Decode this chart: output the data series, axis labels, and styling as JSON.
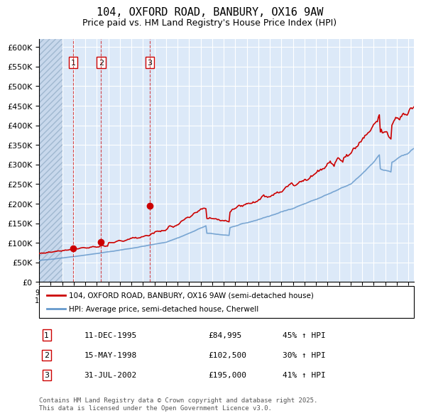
{
  "title": "104, OXFORD ROAD, BANBURY, OX16 9AW",
  "subtitle": "Price paid vs. HM Land Registry's House Price Index (HPI)",
  "red_line_label": "104, OXFORD ROAD, BANBURY, OX16 9AW (semi-detached house)",
  "blue_line_label": "HPI: Average price, semi-detached house, Cherwell",
  "ylabel_ticks": [
    "£0",
    "£50K",
    "£100K",
    "£150K",
    "£200K",
    "£250K",
    "£300K",
    "£350K",
    "£400K",
    "£450K",
    "£500K",
    "£550K",
    "£600K"
  ],
  "ytick_values": [
    0,
    50000,
    100000,
    150000,
    200000,
    250000,
    300000,
    350000,
    400000,
    450000,
    500000,
    550000,
    600000
  ],
  "ylim": [
    0,
    620000
  ],
  "xlim_start": 1993.0,
  "xlim_end": 2025.5,
  "background_color": "#dce9f8",
  "plot_bg_color": "#dce9f8",
  "hatch_color": "#b0c4de",
  "grid_color": "#ffffff",
  "red_color": "#cc0000",
  "blue_color": "#6699cc",
  "sale1_date": 1995.94,
  "sale1_price": 84995,
  "sale1_label": "1",
  "sale2_date": 1998.37,
  "sale2_price": 102500,
  "sale2_label": "2",
  "sale3_date": 2002.58,
  "sale3_price": 195000,
  "sale3_label": "3",
  "transactions": [
    {
      "num": "1",
      "date": "11-DEC-1995",
      "price": "£84,995",
      "change": "45% ↑ HPI"
    },
    {
      "num": "2",
      "date": "15-MAY-1998",
      "price": "£102,500",
      "change": "30% ↑ HPI"
    },
    {
      "num": "3",
      "date": "31-JUL-2002",
      "price": "£195,000",
      "change": "41% ↑ HPI"
    }
  ],
  "footer": "Contains HM Land Registry data © Crown copyright and database right 2025.\nThis data is licensed under the Open Government Licence v3.0."
}
